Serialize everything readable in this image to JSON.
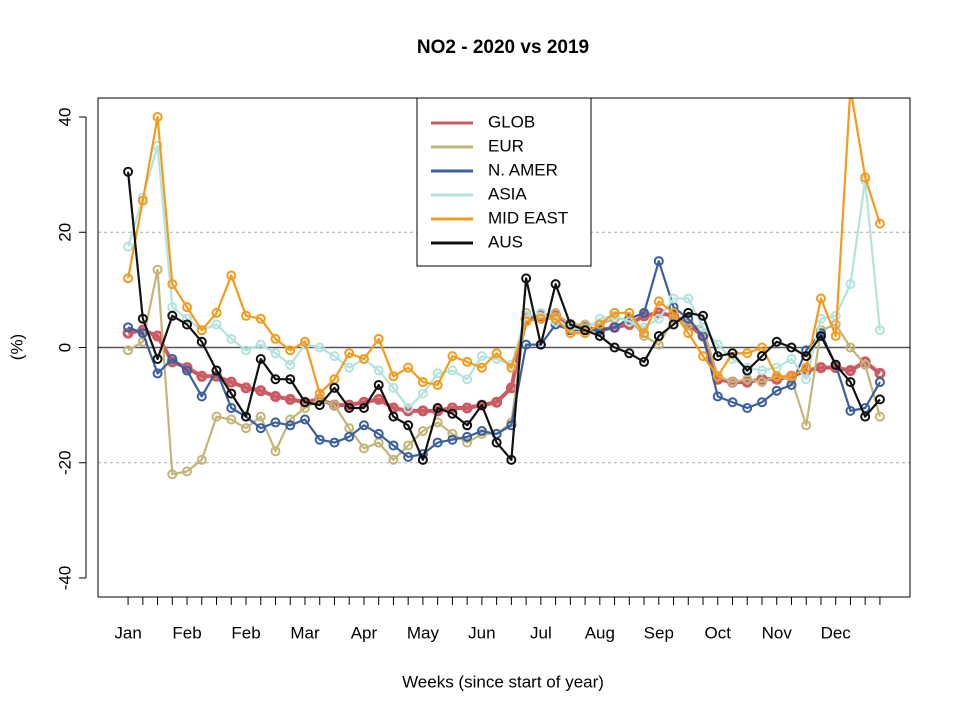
{
  "chart_data": {
    "type": "line",
    "title": "NO2 - 2020 vs 2019",
    "x_label": "Weeks (since start of year)",
    "y_label": "(%)",
    "categories": [
      "Jan",
      null,
      null,
      null,
      "Feb",
      null,
      null,
      null,
      "Feb",
      null,
      null,
      null,
      "Mar",
      null,
      null,
      null,
      "Apr",
      null,
      null,
      null,
      "May",
      null,
      null,
      null,
      "Jun",
      null,
      null,
      null,
      "Jul",
      null,
      null,
      null,
      "Aug",
      null,
      null,
      null,
      "Sep",
      null,
      null,
      null,
      "Oct",
      null,
      null,
      null,
      "Nov",
      null,
      null,
      null,
      "Dec",
      null,
      null,
      null
    ],
    "ylim": [
      -43.3,
      43.3
    ],
    "yticks": [
      -40,
      -20,
      0,
      20,
      40
    ],
    "grid_lines": [
      -20,
      20
    ],
    "zero_line": 0,
    "legend": "top",
    "series": [
      {
        "name": "GLOB",
        "color": "#cc5a63",
        "values": [
          2.5,
          3,
          2,
          -2.5,
          -3.5,
          -5,
          -5,
          -6,
          -7,
          -7.5,
          -8.5,
          -9,
          -9.5,
          -9,
          -10,
          -10,
          -9.5,
          -9,
          -10.5,
          -11,
          -11,
          -11,
          -10.5,
          -10.5,
          -10,
          -9.5,
          -7,
          5,
          5.5,
          5.5,
          4,
          3.5,
          3,
          3.5,
          4,
          5.5,
          6,
          5.5,
          4,
          2,
          -5.5,
          -6,
          -6,
          -5.5,
          -5.5,
          -5,
          -4,
          -3.5,
          -3.5,
          -4,
          -2.5,
          -4.5
        ]
      },
      {
        "name": "EUR",
        "color": "#c2b577",
        "values": [
          -0.5,
          1,
          13.5,
          -22,
          -21.5,
          -19.5,
          -12,
          -12.5,
          -14,
          -12,
          -18,
          -12.5,
          -10.5,
          -9,
          -10,
          -14,
          -17.5,
          -16.5,
          -19.5,
          -17,
          -14.5,
          -13,
          -15,
          -16.5,
          -15,
          -15,
          -13,
          6,
          5,
          6,
          4,
          4,
          4,
          5,
          5,
          2,
          0.5,
          5,
          4,
          3.5,
          -5,
          -6,
          -5.5,
          -6,
          -5,
          -5.5,
          -13.5,
          3,
          4,
          0,
          -3,
          -12
        ]
      },
      {
        "name": "N. AMER",
        "color": "#3a5fa0",
        "values": [
          3.5,
          2.5,
          -4.5,
          -2,
          -4,
          -8.5,
          -4,
          -10.5,
          -12,
          -14,
          -13,
          -13.5,
          -12.5,
          -16,
          -16.5,
          -15.5,
          -13.5,
          -15,
          -17,
          -19,
          -18.5,
          -16.5,
          -16,
          -15.5,
          -14.5,
          -15,
          -13.5,
          0.5,
          0.5,
          4,
          3,
          3,
          3,
          3.5,
          5,
          6,
          15,
          7,
          5,
          2,
          -8.5,
          -9.5,
          -10.5,
          -9.5,
          -7.5,
          -6.5,
          -0.5,
          2.5,
          -3,
          -11,
          -10.5,
          -6
        ]
      },
      {
        "name": "ASIA",
        "color": "#b3e3de",
        "values": [
          17.5,
          26,
          35,
          7,
          5,
          3,
          4,
          1.5,
          -0.5,
          0.5,
          -1,
          -3,
          0.5,
          0,
          -1.5,
          -3.5,
          -2,
          -4,
          -7,
          -10.5,
          -8,
          -4.5,
          -4,
          -5.5,
          -1.5,
          -2,
          -3,
          5.5,
          6,
          4.5,
          3.5,
          3,
          5,
          5.5,
          4.5,
          3.5,
          5,
          8.5,
          8.5,
          3.5,
          0.5,
          -2,
          -3.5,
          -4,
          -3.5,
          -2,
          -5.5,
          5,
          5.5,
          11,
          29,
          3
        ]
      },
      {
        "name": "MID EAST",
        "color": "#f59b1c",
        "values": [
          12,
          25.5,
          40,
          11,
          7,
          3,
          6,
          12.5,
          5.5,
          5,
          1.5,
          -0.5,
          1,
          -8,
          -5.5,
          -1,
          -2,
          1.5,
          -5,
          -3.5,
          -6,
          -6.5,
          -1.5,
          -2.5,
          -3.5,
          -1,
          -3.5,
          4.5,
          5,
          5,
          2.5,
          2.5,
          4,
          6,
          6,
          2.5,
          8,
          6,
          2.5,
          -1.5,
          -5,
          -1,
          -1,
          0,
          -5,
          -5,
          -3.5,
          8.5,
          2,
          45,
          29.5,
          21.5
        ]
      },
      {
        "name": "AUS",
        "color": "#111111",
        "values": [
          30.5,
          5,
          -2,
          5.5,
          4,
          1,
          -4,
          -8,
          -12,
          -2,
          -5.5,
          -5.5,
          -9.5,
          -10,
          -7,
          -10.5,
          -10.5,
          -6.5,
          -12,
          -13.5,
          -19.5,
          -10.5,
          -11.5,
          -13.5,
          -10,
          -16.5,
          -19.5,
          12,
          0.5,
          11,
          4,
          3,
          2,
          0,
          -1,
          -2.5,
          2,
          4,
          6,
          5.5,
          -1.5,
          -1,
          -4,
          -1.5,
          1,
          0,
          -1.5,
          2,
          -3,
          -6,
          -12,
          -9
        ]
      }
    ]
  }
}
